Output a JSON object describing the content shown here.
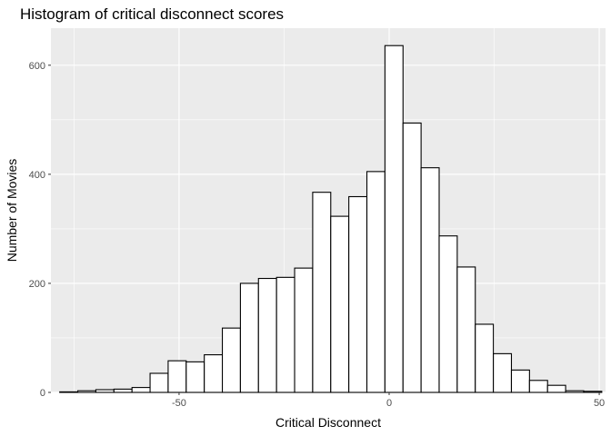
{
  "chart_data": {
    "type": "histogram",
    "title": "Histogram of critical disconnect scores",
    "xlabel": "Critical Disconnect",
    "ylabel": "Number of Movies",
    "xlim": [
      -80.5,
      51.5
    ],
    "ylim": [
      0,
      668
    ],
    "x_ticks": [
      -50,
      0,
      50
    ],
    "x_tick_labels": [
      "-50",
      "0",
      "50"
    ],
    "y_ticks": [
      0,
      200,
      400,
      600
    ],
    "y_tick_labels": [
      "0",
      "200",
      "400",
      "600"
    ],
    "bin_width": 4.3,
    "bins_start": -78.4,
    "values": [
      1,
      3,
      5,
      6,
      9,
      35,
      58,
      56,
      69,
      118,
      200,
      209,
      211,
      228,
      367,
      323,
      359,
      405,
      636,
      494,
      412,
      287,
      230,
      125,
      71,
      41,
      22,
      13,
      3,
      2
    ],
    "grid": true,
    "legend": "none",
    "colors": {
      "panel_background": "#ebebeb",
      "grid_major": "#ffffff",
      "bar_fill": "#ffffff",
      "bar_outline": "#000000"
    }
  }
}
